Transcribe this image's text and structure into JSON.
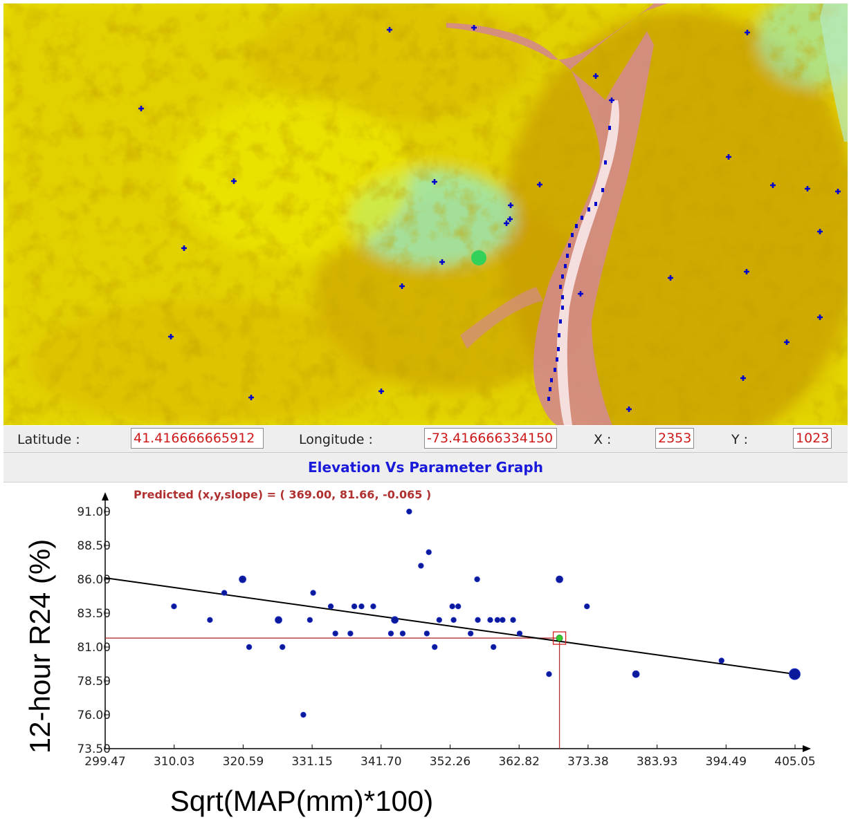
{
  "map": {
    "colors": {
      "lowland": "#e9e600",
      "midland": "#d2aa00",
      "valley": "#a87000",
      "upland": "#86e6b4",
      "river": "#d08080",
      "river_core": "#ffffff",
      "station": "#0000cc",
      "selected": "#33d05a"
    },
    "icon": "station-plus-marker"
  },
  "coordinates": {
    "latitude_label": "Latitude  :",
    "latitude_value": "41.416666665912",
    "longitude_label": "Longitude  :",
    "longitude_value": "-73.416666334150",
    "x_label": "X :",
    "x_value": "2353",
    "y_label": "Y :",
    "y_value": "1023"
  },
  "graph": {
    "title": "Elevation Vs Parameter Graph",
    "predicted_label": "Predicted (x,y,slope) =  ( 369.00, 81.66, -0.065 )"
  },
  "chart_data": {
    "type": "scatter",
    "xlabel": "Sqrt(MAP(mm)*100)",
    "ylabel": "12-hour R24 (%)",
    "xlim": [
      299.47,
      405.05
    ],
    "ylim": [
      73.5,
      91.0
    ],
    "x_ticks": [
      "299.47",
      "310.03",
      "320.59",
      "331.15",
      "341.70",
      "352.26",
      "362.82",
      "373.38",
      "383.93",
      "394.49",
      "405.05"
    ],
    "y_ticks": [
      "73.50",
      "76.00",
      "78.50",
      "81.00",
      "83.50",
      "86.00",
      "88.50",
      "91.00"
    ],
    "regression": {
      "x": [
        299.47,
        405.05
      ],
      "y": [
        86.1,
        79.0
      ]
    },
    "predicted": {
      "x": 369.0,
      "y": 81.66,
      "slope": -0.065
    },
    "points": [
      {
        "x": 310.0,
        "y": 84.0
      },
      {
        "x": 315.5,
        "y": 83.0
      },
      {
        "x": 317.7,
        "y": 85.0
      },
      {
        "x": 320.5,
        "y": 86.0,
        "big": true
      },
      {
        "x": 321.5,
        "y": 81.0
      },
      {
        "x": 326.0,
        "y": 83.0,
        "big": true
      },
      {
        "x": 326.6,
        "y": 81.0
      },
      {
        "x": 329.8,
        "y": 76.0
      },
      {
        "x": 330.8,
        "y": 83.0
      },
      {
        "x": 331.3,
        "y": 85.0
      },
      {
        "x": 334.0,
        "y": 84.0
      },
      {
        "x": 334.7,
        "y": 82.0
      },
      {
        "x": 337.0,
        "y": 82.0
      },
      {
        "x": 337.6,
        "y": 84.0
      },
      {
        "x": 338.7,
        "y": 84.0
      },
      {
        "x": 340.5,
        "y": 84.0
      },
      {
        "x": 343.2,
        "y": 82.0
      },
      {
        "x": 343.8,
        "y": 83.0,
        "big": true
      },
      {
        "x": 345.0,
        "y": 82.0
      },
      {
        "x": 346.0,
        "y": 91.0
      },
      {
        "x": 347.8,
        "y": 87.0
      },
      {
        "x": 348.7,
        "y": 82.0
      },
      {
        "x": 349.0,
        "y": 88.0
      },
      {
        "x": 349.9,
        "y": 81.0
      },
      {
        "x": 350.6,
        "y": 83.0
      },
      {
        "x": 352.6,
        "y": 84.0
      },
      {
        "x": 352.8,
        "y": 83.0
      },
      {
        "x": 353.5,
        "y": 84.0
      },
      {
        "x": 355.4,
        "y": 82.0
      },
      {
        "x": 356.4,
        "y": 86.0
      },
      {
        "x": 356.5,
        "y": 83.0
      },
      {
        "x": 358.4,
        "y": 83.0
      },
      {
        "x": 358.9,
        "y": 81.0
      },
      {
        "x": 359.5,
        "y": 83.0
      },
      {
        "x": 360.3,
        "y": 83.0
      },
      {
        "x": 361.9,
        "y": 83.0
      },
      {
        "x": 362.9,
        "y": 82.0
      },
      {
        "x": 367.4,
        "y": 79.0
      },
      {
        "x": 369.0,
        "y": 86.0,
        "big": true
      },
      {
        "x": 373.2,
        "y": 84.0
      },
      {
        "x": 380.7,
        "y": 79.0,
        "big": true
      },
      {
        "x": 393.8,
        "y": 80.0
      },
      {
        "x": 405.0,
        "y": 79.0,
        "huge": true
      }
    ]
  }
}
